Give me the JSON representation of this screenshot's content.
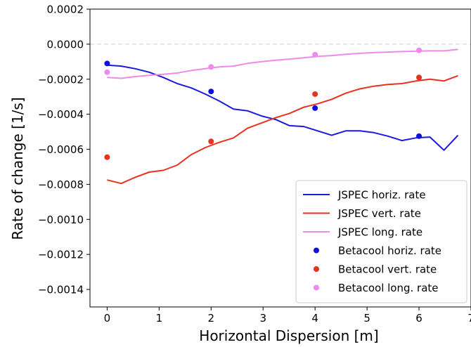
{
  "chart_data": {
    "type": "line",
    "xlabel": "Horizontal Dispersion [m]",
    "ylabel": "Rate of change [1/s]",
    "xlim": [
      -0.33,
      7.0
    ],
    "ylim": [
      -0.0015,
      0.0002
    ],
    "x_ticks": [
      0,
      1,
      2,
      3,
      4,
      5,
      6,
      7
    ],
    "x_tick_labels": [
      "0",
      "1",
      "2",
      "3",
      "4",
      "5",
      "6",
      "7"
    ],
    "y_ticks": [
      0.0002,
      0.0,
      -0.0002,
      -0.0004,
      -0.0006,
      -0.0008,
      -0.001,
      -0.0012,
      -0.0014
    ],
    "y_tick_labels": [
      "0.0002",
      "0.0000",
      "−0.0002",
      "−0.0004",
      "−0.0006",
      "−0.0008",
      "−0.0010",
      "−0.0012",
      "−0.0014"
    ],
    "zero_line": {
      "y": 0.0,
      "style": "dashed",
      "color": "#dddddd"
    },
    "legend_position": "lower-right",
    "line_series": [
      {
        "name": "JSPEC horiz. rate",
        "color": "#1a1ae0",
        "x": [
          0,
          0.27,
          0.54,
          0.81,
          1.08,
          1.35,
          1.62,
          1.89,
          2.16,
          2.43,
          2.7,
          2.97,
          3.24,
          3.51,
          3.78,
          4.05,
          4.32,
          4.59,
          4.86,
          5.13,
          5.4,
          5.67,
          5.94,
          6.21,
          6.48,
          6.75
        ],
        "y": [
          -0.00012,
          -0.000125,
          -0.00014,
          -0.00016,
          -0.00019,
          -0.000225,
          -0.00025,
          -0.000285,
          -0.000325,
          -0.00037,
          -0.00038,
          -0.00041,
          -0.00043,
          -0.000465,
          -0.00047,
          -0.000495,
          -0.00052,
          -0.000495,
          -0.000495,
          -0.000505,
          -0.000525,
          -0.00055,
          -0.000535,
          -0.00053,
          -0.000605,
          -0.00052
        ]
      },
      {
        "name": "JSPEC vert. rate",
        "color": "#e8321e",
        "x": [
          0,
          0.27,
          0.54,
          0.81,
          1.08,
          1.35,
          1.62,
          1.89,
          2.16,
          2.43,
          2.7,
          2.97,
          3.24,
          3.51,
          3.78,
          4.05,
          4.32,
          4.59,
          4.86,
          5.13,
          5.4,
          5.67,
          5.94,
          6.21,
          6.48,
          6.75
        ],
        "y": [
          -0.000775,
          -0.000795,
          -0.00076,
          -0.00073,
          -0.00072,
          -0.00069,
          -0.00063,
          -0.00059,
          -0.00056,
          -0.000535,
          -0.00048,
          -0.00045,
          -0.00042,
          -0.000395,
          -0.00036,
          -0.00034,
          -0.000315,
          -0.00028,
          -0.000255,
          -0.00024,
          -0.00023,
          -0.000225,
          -0.00021,
          -0.0002,
          -0.00021,
          -0.00018
        ]
      },
      {
        "name": "JSPEC long. rate",
        "color": "#ee8aee",
        "x": [
          0,
          0.27,
          0.54,
          0.81,
          1.08,
          1.35,
          1.62,
          1.89,
          2.16,
          2.43,
          2.7,
          2.97,
          3.24,
          3.51,
          3.78,
          4.05,
          4.32,
          4.59,
          4.86,
          5.13,
          5.4,
          5.67,
          5.94,
          6.21,
          6.48,
          6.75
        ],
        "y": [
          -0.00019,
          -0.000195,
          -0.000185,
          -0.000178,
          -0.000172,
          -0.000165,
          -0.00015,
          -0.00014,
          -0.00013,
          -0.000125,
          -0.00011,
          -0.0001,
          -9.2e-05,
          -8.5e-05,
          -7.8e-05,
          -7e-05,
          -6.5e-05,
          -5.8e-05,
          -5.2e-05,
          -4.8e-05,
          -4.5e-05,
          -4.2e-05,
          -4e-05,
          -3.8e-05,
          -3.8e-05,
          -3e-05
        ]
      }
    ],
    "scatter_series": [
      {
        "name": "Betacool horiz. rate",
        "color": "#0d0de6",
        "x": [
          0,
          2,
          4,
          6
        ],
        "y": [
          -0.00011,
          -0.00027,
          -0.000365,
          -0.000525
        ]
      },
      {
        "name": "Betacool vert. rate",
        "color": "#e8321e",
        "x": [
          0,
          2,
          4,
          6
        ],
        "y": [
          -0.000645,
          -0.000555,
          -0.000285,
          -0.00019
        ]
      },
      {
        "name": "Betacool long. rate",
        "color": "#ee8aee",
        "x": [
          0,
          2,
          4,
          6
        ],
        "y": [
          -0.00016,
          -0.00013,
          -6e-05,
          -3.5e-05
        ]
      }
    ]
  }
}
